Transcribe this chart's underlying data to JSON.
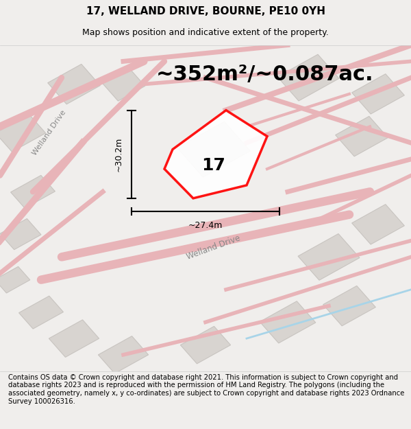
{
  "title": "17, WELLAND DRIVE, BOURNE, PE10 0YH",
  "subtitle": "Map shows position and indicative extent of the property.",
  "area_text": "~352m²/~0.087ac.",
  "label_17": "17",
  "dim_vertical": "~30.2m",
  "dim_horizontal": "~27.4m",
  "welland_drive_upper": "Welland Drive",
  "welland_drive_lower": "Welland Drive",
  "footer": "Contains OS data © Crown copyright and database right 2021. This information is subject to Crown copyright and database rights 2023 and is reproduced with the permission of HM Land Registry. The polygons (including the associated geometry, namely x, y co-ordinates) are subject to Crown copyright and database rights 2023 Ordnance Survey 100026316.",
  "bg_color": "#f0eeec",
  "map_bg": "#f5f3f1",
  "road_color": "#e8b4b8",
  "building_color": "#d8d4d0",
  "building_edge": "#c8c4c0",
  "property_color": "red",
  "property_fill": "white",
  "title_fontsize": 11,
  "subtitle_fontsize": 9,
  "area_fontsize": 22,
  "label_fontsize": 18,
  "dim_fontsize": 9,
  "footer_fontsize": 7.2
}
